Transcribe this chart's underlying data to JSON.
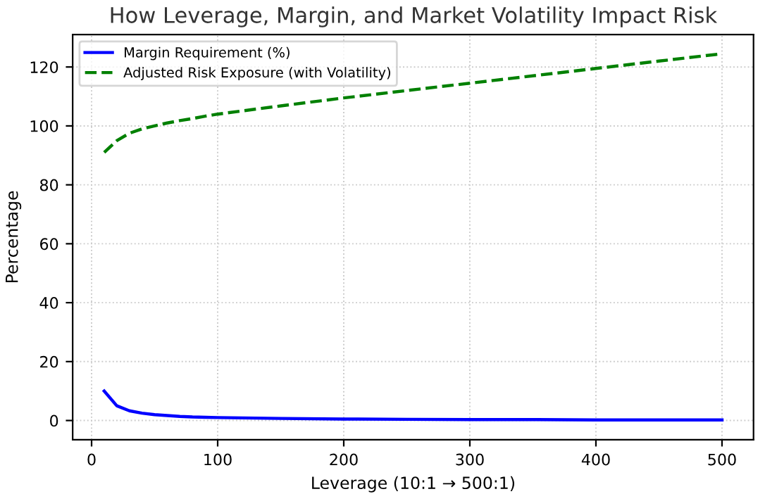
{
  "chart_data": {
    "type": "line",
    "title": "How Leverage, Margin, and Market Volatility Impact Risk",
    "xlabel": "Leverage (10:1 → 500:1)",
    "ylabel": "Percentage",
    "x": [
      10,
      20,
      30,
      40,
      50,
      60,
      70,
      80,
      90,
      100,
      150,
      200,
      250,
      300,
      350,
      400,
      450,
      500
    ],
    "series": [
      {
        "name": "Margin Requirement (%)",
        "color": "#0000ff",
        "line_style": "solid",
        "values": [
          10,
          5,
          3.3,
          2.5,
          2,
          1.7,
          1.4,
          1.2,
          1.1,
          1,
          0.7,
          0.5,
          0.4,
          0.3,
          0.3,
          0.2,
          0.2,
          0.2
        ]
      },
      {
        "name": "Adjusted Risk Exposure (with Volatility)",
        "color": "#008000",
        "line_style": "dashed",
        "values": [
          91,
          95,
          97.5,
          99,
          100,
          101,
          101.8,
          102.5,
          103.3,
          104,
          106.8,
          109.5,
          112,
          114.5,
          117,
          119.5,
          122,
          124.5
        ]
      }
    ],
    "xlim": [
      -15,
      525
    ],
    "ylim": [
      -6.5,
      131
    ],
    "xticks": [
      0,
      100,
      200,
      300,
      400,
      500
    ],
    "yticks": [
      0,
      20,
      40,
      60,
      80,
      100,
      120
    ],
    "grid": true,
    "legend": "top left",
    "marker": "none"
  }
}
